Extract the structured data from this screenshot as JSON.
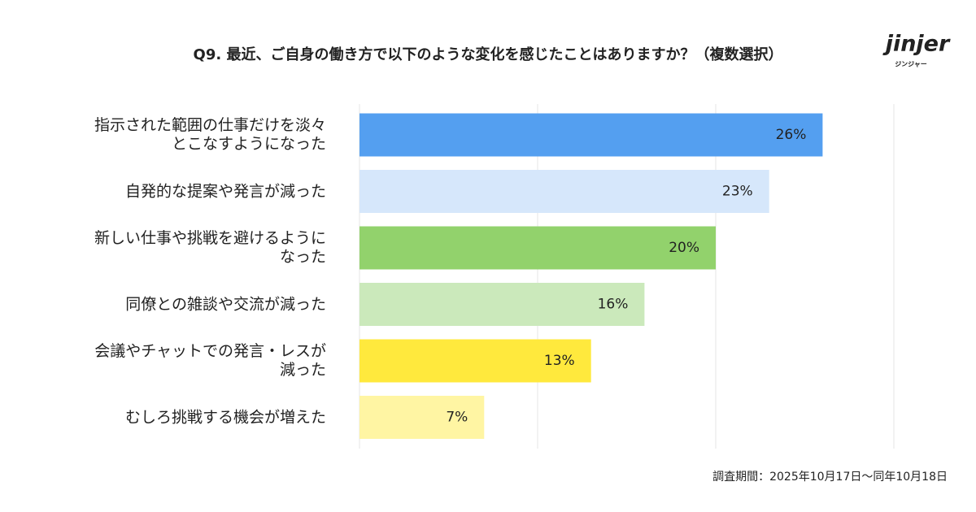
{
  "chart_data": {
    "type": "hbar",
    "title": "Q9. 最近、ご自身の働き方で以下のような変化を感じたことはありますか？（複数選択）",
    "categories": [
      "指示された範囲の仕事だけを淡々とこなすようになった",
      "自発的な提案や発言が減った",
      "新しい仕事や挑戦を避けるようになった",
      "同僚との雑談や交流が減った",
      "会議やチャットでの発言・レスが減った",
      "むしろ挑戦する機会が増えた"
    ],
    "values": [
      26,
      23,
      20,
      16,
      13,
      7
    ],
    "value_labels": [
      "26%",
      "23%",
      "20%",
      "16%",
      "13%",
      "7%"
    ],
    "colors": [
      "#549ff0",
      "#d6e7fb",
      "#92d26c",
      "#cbe9bb",
      "#ffe93d",
      "#fff5a3"
    ],
    "xlim": [
      0,
      30
    ],
    "xticks": [
      0,
      10,
      20,
      30
    ],
    "grid": true
  },
  "logo": {
    "name": "jinjer",
    "kana": "ジンジャー"
  },
  "note": "調査期間：2025年10月17日〜同年10月18日"
}
